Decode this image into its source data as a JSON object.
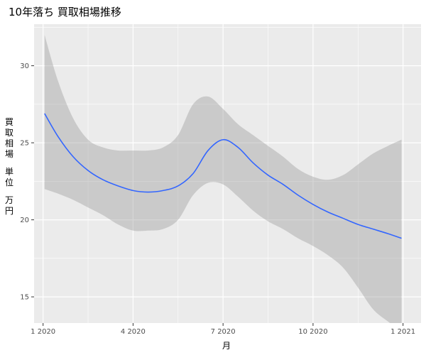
{
  "title": "10年落ち 買取相場推移",
  "chart_data": {
    "type": "line",
    "title": "10年落ち 買取相場推移",
    "xlabel": "月",
    "ylabel": "買取相場 単位 万円",
    "ylabel_lines": [
      "買",
      "取",
      "相",
      "場",
      "",
      "単",
      "位",
      "",
      "万",
      "円"
    ],
    "x_ticks": [
      {
        "label": "1 2020",
        "month": 0
      },
      {
        "label": "4 2020",
        "month": 3
      },
      {
        "label": "7 2020",
        "month": 6
      },
      {
        "label": "10 2020",
        "month": 9
      },
      {
        "label": "1 2021",
        "month": 12
      }
    ],
    "y_ticks": [
      15,
      20,
      25,
      30
    ],
    "xlim": [
      -0.3,
      12.6
    ],
    "ylim": [
      13.3,
      32.7
    ],
    "grid": true,
    "smooth_color": "#3366FF",
    "band_color": "#999999",
    "panel_color": "#EBEBEB",
    "series": [
      {
        "x": [
          0.05,
          0.5,
          1.0,
          1.5,
          2.0,
          2.5,
          3.0,
          3.5,
          4.0,
          4.5,
          5.0,
          5.5,
          6.0,
          6.5,
          7.0,
          7.5,
          8.0,
          8.5,
          9.0,
          9.5,
          10.0,
          10.5,
          11.0,
          11.5,
          11.95
        ],
        "y": [
          26.9,
          25.4,
          24.1,
          23.2,
          22.6,
          22.2,
          21.9,
          21.8,
          21.9,
          22.2,
          23.0,
          24.5,
          25.2,
          24.7,
          23.7,
          22.9,
          22.3,
          21.6,
          21.0,
          20.5,
          20.1,
          19.7,
          19.4,
          19.1,
          18.8
        ],
        "lower": [
          22.0,
          21.7,
          21.3,
          20.8,
          20.3,
          19.7,
          19.3,
          19.3,
          19.4,
          20.0,
          21.6,
          22.4,
          22.3,
          21.5,
          20.6,
          19.9,
          19.4,
          18.8,
          18.3,
          17.7,
          16.9,
          15.6,
          14.2,
          13.4,
          12.8
        ],
        "upper": [
          32.0,
          29.0,
          26.6,
          25.2,
          24.7,
          24.5,
          24.5,
          24.5,
          24.7,
          25.5,
          27.5,
          28.0,
          27.2,
          26.2,
          25.5,
          24.8,
          24.1,
          23.3,
          22.8,
          22.6,
          22.9,
          23.6,
          24.3,
          24.8,
          25.2
        ]
      }
    ]
  }
}
